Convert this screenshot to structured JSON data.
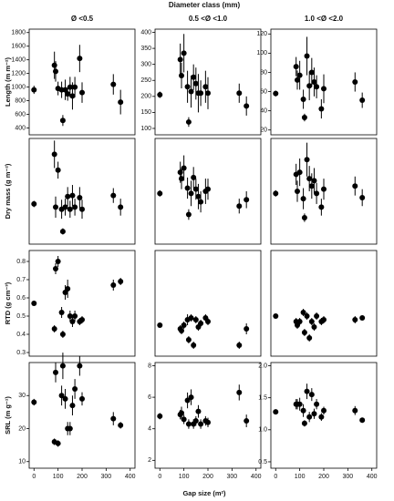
{
  "figure": {
    "title": "Diameter class (mm)",
    "xlabel": "Gap size (m²)"
  },
  "chart_data": [
    {
      "type": "scatter",
      "title": "Ø <0.5",
      "ylabel": "Length (m m⁻²)",
      "x": [
        0,
        85,
        90,
        100,
        115,
        120,
        130,
        140,
        150,
        160,
        170,
        190,
        200,
        330,
        360
      ],
      "values": [
        960,
        1320,
        1230,
        980,
        960,
        510,
        960,
        900,
        1000,
        870,
        1000,
        1420,
        920,
        1040,
        780
      ],
      "errors": [
        60,
        200,
        150,
        100,
        120,
        80,
        150,
        100,
        150,
        200,
        150,
        200,
        150,
        150,
        180
      ],
      "color": "#000000",
      "xlim": [
        -20,
        420
      ],
      "ylim": [
        300,
        1850
      ],
      "yticks": [
        400,
        600,
        800,
        1000,
        1200,
        1400,
        1600,
        1800
      ]
    },
    {
      "type": "scatter",
      "title": "0.5 <Ø <1.0",
      "x": [
        0,
        85,
        90,
        100,
        115,
        120,
        130,
        140,
        150,
        160,
        170,
        190,
        200,
        330,
        360
      ],
      "values": [
        205,
        315,
        265,
        335,
        230,
        120,
        215,
        260,
        240,
        210,
        210,
        230,
        210,
        210,
        170
      ],
      "errors": [
        10,
        50,
        40,
        60,
        50,
        15,
        50,
        40,
        50,
        60,
        40,
        50,
        50,
        30,
        30
      ],
      "color": "#000000",
      "xlim": [
        -20,
        420
      ],
      "ylim": [
        80,
        410
      ],
      "yticks": [
        100,
        150,
        200,
        250,
        300,
        350,
        400
      ]
    },
    {
      "type": "scatter",
      "title": "1.0 <Ø <2.0",
      "x": [
        0,
        85,
        90,
        100,
        115,
        120,
        130,
        140,
        150,
        160,
        170,
        190,
        200,
        330,
        360
      ],
      "values": [
        58,
        86,
        72,
        77,
        52,
        33,
        97,
        66,
        80,
        70,
        65,
        42,
        63,
        70,
        51
      ],
      "errors": [
        3,
        10,
        10,
        15,
        10,
        4,
        20,
        15,
        15,
        15,
        12,
        10,
        15,
        10,
        8
      ],
      "color": "#000000",
      "xlim": [
        -20,
        420
      ],
      "ylim": [
        15,
        125
      ],
      "yticks": [
        20,
        40,
        60,
        80,
        100,
        120
      ]
    },
    {
      "type": "scatter",
      "ylabel": "Dry mass (g m⁻²)",
      "x": [
        0,
        85,
        90,
        100,
        115,
        120,
        130,
        140,
        150,
        160,
        170,
        190,
        200,
        330,
        360
      ],
      "values": [
        3.8,
        8.5,
        3.5,
        7,
        3.3,
        1.2,
        3.5,
        4.5,
        3.3,
        4.6,
        3.5,
        4.4,
        3.3,
        4.6,
        3.5
      ],
      "errors": [
        0.3,
        1.3,
        1,
        0.8,
        0.9,
        0.3,
        0.8,
        0.9,
        0.8,
        1,
        0.8,
        1,
        0.9,
        0.7,
        0.8
      ],
      "color": "#000000",
      "xlim": [
        -20,
        420
      ],
      "ylim": [
        0,
        10
      ]
    },
    {
      "type": "scatter",
      "x": [
        0,
        85,
        90,
        100,
        115,
        120,
        130,
        140,
        150,
        160,
        170,
        190,
        200,
        330,
        360
      ],
      "values": [
        4.8,
        6.8,
        6.2,
        7.2,
        5.3,
        2.8,
        4.8,
        6.3,
        5.2,
        4.5,
        4.0,
        5.0,
        5.2,
        3.6,
        4.2
      ],
      "errors": [
        0.3,
        1,
        1,
        1.2,
        1,
        0.5,
        1.2,
        1,
        1,
        1.2,
        1,
        1.2,
        1,
        0.7,
        0.8
      ],
      "color": "#000000",
      "xlim": [
        -20,
        420
      ],
      "ylim": [
        0,
        10
      ]
    },
    {
      "type": "scatter",
      "x": [
        0,
        85,
        90,
        100,
        115,
        120,
        130,
        140,
        150,
        160,
        170,
        190,
        200,
        330,
        360
      ],
      "values": [
        4.8,
        6.6,
        5.0,
        6.8,
        4.3,
        2.5,
        8,
        6.2,
        5.5,
        6.0,
        4.8,
        3.5,
        5.2,
        5.5,
        4.4
      ],
      "errors": [
        0.3,
        1,
        1,
        1.3,
        1,
        0.4,
        1.6,
        1.2,
        1.2,
        1.2,
        1,
        0.8,
        1,
        0.9,
        0.8
      ],
      "color": "#000000",
      "xlim": [
        -20,
        420
      ],
      "ylim": [
        0,
        10
      ]
    },
    {
      "type": "scatter",
      "ylabel": "RTD (g cm⁻³)",
      "x": [
        0,
        85,
        90,
        100,
        115,
        120,
        130,
        140,
        150,
        160,
        170,
        190,
        200,
        330,
        360
      ],
      "values": [
        0.57,
        0.43,
        0.76,
        0.8,
        0.52,
        0.4,
        0.63,
        0.65,
        0.5,
        0.47,
        0.5,
        0.47,
        0.48,
        0.67,
        0.69
      ],
      "errors": [
        0.01,
        0.02,
        0.03,
        0.03,
        0.03,
        0.02,
        0.04,
        0.05,
        0.03,
        0.03,
        0.03,
        0.02,
        0.02,
        0.03,
        0.02
      ],
      "color": "#000000",
      "xlim": [
        -20,
        420
      ],
      "ylim": [
        0.28,
        0.86
      ],
      "yticks": [
        0.3,
        0.4,
        0.5,
        0.6,
        0.7,
        0.8
      ]
    },
    {
      "type": "scatter",
      "x": [
        0,
        85,
        90,
        100,
        115,
        120,
        130,
        140,
        150,
        160,
        170,
        190,
        200,
        330,
        360
      ],
      "values": [
        0.45,
        0.43,
        0.42,
        0.45,
        0.48,
        0.37,
        0.49,
        0.34,
        0.48,
        0.44,
        0.46,
        0.49,
        0.47,
        0.34,
        0.43
      ],
      "errors": [
        0.01,
        0.02,
        0.02,
        0.02,
        0.03,
        0.02,
        0.02,
        0.02,
        0.02,
        0.02,
        0.02,
        0.02,
        0.02,
        0.02,
        0.03
      ],
      "color": "#000000",
      "xlim": [
        -20,
        420
      ],
      "ylim": [
        0.28,
        0.86
      ]
    },
    {
      "type": "scatter",
      "x": [
        0,
        85,
        90,
        100,
        115,
        120,
        130,
        140,
        150,
        160,
        170,
        190,
        200,
        330,
        360
      ],
      "values": [
        0.5,
        0.47,
        0.45,
        0.47,
        0.52,
        0.41,
        0.5,
        0.38,
        0.47,
        0.44,
        0.5,
        0.47,
        0.48,
        0.48,
        0.49
      ],
      "errors": [
        0.01,
        0.02,
        0.02,
        0.02,
        0.02,
        0.02,
        0.02,
        0.02,
        0.02,
        0.02,
        0.02,
        0.02,
        0.02,
        0.02,
        0.01
      ],
      "color": "#000000",
      "xlim": [
        -20,
        420
      ],
      "ylim": [
        0.28,
        0.86
      ]
    },
    {
      "type": "scatter",
      "ylabel": "SRL (m g⁻¹)",
      "x": [
        0,
        85,
        90,
        100,
        115,
        120,
        130,
        140,
        150,
        160,
        170,
        190,
        200,
        330,
        360
      ],
      "values": [
        28,
        16,
        37,
        15.5,
        30,
        39,
        29,
        20,
        20,
        27,
        32,
        39,
        29,
        23,
        21
      ],
      "errors": [
        1,
        1,
        3,
        1,
        3,
        4,
        3,
        2,
        2,
        3,
        3,
        3,
        2,
        2,
        1
      ],
      "color": "#000000",
      "xlim": [
        -20,
        420
      ],
      "xticks": [
        0,
        100,
        200,
        300,
        400
      ],
      "ylim": [
        8,
        40
      ],
      "yticks": [
        10,
        20,
        30
      ]
    },
    {
      "type": "scatter",
      "x": [
        0,
        85,
        90,
        100,
        115,
        120,
        130,
        140,
        150,
        160,
        170,
        190,
        200,
        330,
        360
      ],
      "values": [
        4.8,
        4.9,
        5,
        4.6,
        5.8,
        4.3,
        6.0,
        4.3,
        4.5,
        5.1,
        4.3,
        4.5,
        4.4,
        6.3,
        4.5
      ],
      "errors": [
        0.2,
        0.3,
        0.4,
        0.3,
        0.5,
        0.3,
        0.5,
        0.3,
        0.3,
        0.4,
        0.3,
        0.3,
        0.3,
        0.5,
        0.4
      ],
      "color": "#000000",
      "xlim": [
        -20,
        420
      ],
      "xticks": [
        0,
        100,
        200,
        300,
        400
      ],
      "ylim": [
        1.5,
        8.2
      ],
      "yticks": [
        2,
        4,
        6,
        8
      ]
    },
    {
      "type": "scatter",
      "x": [
        0,
        85,
        90,
        100,
        115,
        120,
        130,
        140,
        150,
        160,
        170,
        190,
        200,
        330,
        360
      ],
      "values": [
        1.28,
        1.4,
        1.4,
        1.4,
        1.3,
        1.1,
        1.6,
        1.2,
        1.55,
        1.25,
        1.4,
        1.2,
        1.3,
        1.3,
        1.15
      ],
      "errors": [
        0.03,
        0.08,
        0.08,
        0.1,
        0.1,
        0.05,
        0.12,
        0.08,
        0.1,
        0.08,
        0.08,
        0.06,
        0.06,
        0.07,
        0.04
      ],
      "color": "#000000",
      "xlim": [
        -20,
        420
      ],
      "xticks": [
        0,
        100,
        200,
        300,
        400
      ],
      "ylim": [
        0.4,
        2.05
      ],
      "yticks": [
        0.5,
        {
          "value": 1,
          "label": "1.0"
        },
        1.5,
        {
          "value": 2,
          "label": "2.0"
        }
      ]
    }
  ]
}
